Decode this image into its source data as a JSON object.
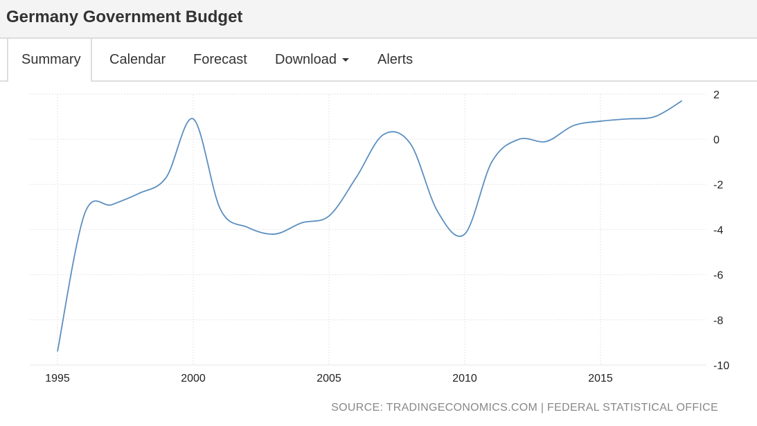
{
  "header": {
    "title": "Germany Government Budget"
  },
  "tabs": [
    {
      "label": "Summary"
    },
    {
      "label": "Calendar"
    },
    {
      "label": "Forecast"
    },
    {
      "label": "Download"
    },
    {
      "label": "Alerts"
    }
  ],
  "source": "SOURCE: TRADINGECONOMICS.COM | FEDERAL STATISTICAL OFFICE",
  "colors": {
    "line": "#5b8fbf"
  },
  "chart_data": {
    "type": "line",
    "title": "Germany Government Budget",
    "xlabel": "",
    "ylabel": "",
    "x": [
      1995,
      1996,
      1997,
      1998,
      1999,
      2000,
      2001,
      2002,
      2003,
      2004,
      2005,
      2006,
      2007,
      2008,
      2009,
      2010,
      2011,
      2012,
      2013,
      2014,
      2015,
      2016,
      2017,
      2018
    ],
    "series": [
      {
        "name": "Government Budget",
        "values": [
          -9.4,
          -3.3,
          -2.9,
          -2.4,
          -1.7,
          0.9,
          -3.1,
          -3.9,
          -4.2,
          -3.7,
          -3.4,
          -1.7,
          0.2,
          -0.2,
          -3.2,
          -4.2,
          -1.0,
          0.0,
          -0.1,
          0.6,
          0.8,
          0.9,
          1.0,
          1.7
        ]
      }
    ],
    "xticks": [
      "1995",
      "2000",
      "2005",
      "2010",
      "2015"
    ],
    "yticks": [
      "2",
      "0",
      "-2",
      "-4",
      "-6",
      "-8",
      "-10"
    ],
    "xlim": [
      1995,
      2018
    ],
    "ylim": [
      -10,
      2
    ],
    "grid": true
  }
}
